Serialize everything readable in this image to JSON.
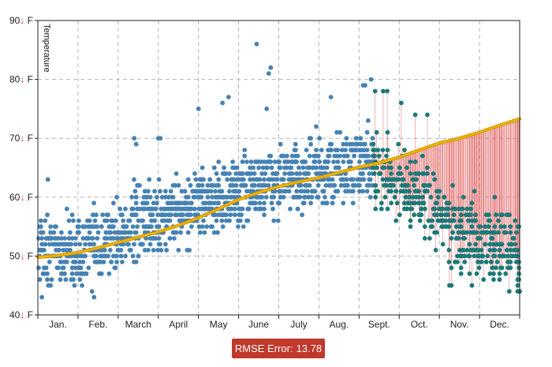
{
  "chart_data": {
    "type": "scatter",
    "ylabel": "Temperature",
    "ylim": [
      40,
      90
    ],
    "y_ticks": [
      {
        "num": "90",
        "arrow": "↓",
        "unit": "F",
        "value": 90
      },
      {
        "num": "80",
        "arrow": "↓",
        "unit": "F",
        "value": 80
      },
      {
        "num": "70",
        "arrow": "↓",
        "unit": "F",
        "value": 70
      },
      {
        "num": "60",
        "arrow": "↓",
        "unit": "F",
        "value": 60
      },
      {
        "num": "50",
        "arrow": "↓",
        "unit": "F",
        "value": 50
      },
      {
        "num": "40",
        "arrow": "↓",
        "unit": "F",
        "value": 40
      }
    ],
    "x_ticks": [
      "Jan.",
      "Feb.",
      "March",
      "April",
      "May",
      "June",
      "July",
      "Aug.",
      "Sept.",
      "Oct.",
      "Nov.",
      "Dec."
    ],
    "xlim": [
      0,
      12
    ],
    "grid": true,
    "split_x": 8.35,
    "colors": {
      "observed": "#4682b4",
      "predicted": "#1a7a78",
      "model_line": "#e6b800",
      "residual": "#e05a5a",
      "grid": "#b5b5b5"
    },
    "model_curve": [
      {
        "x": 0.0,
        "y": 49.8
      },
      {
        "x": 0.5,
        "y": 50.1
      },
      {
        "x": 1.0,
        "y": 50.6
      },
      {
        "x": 1.5,
        "y": 51.4
      },
      {
        "x": 2.0,
        "y": 52.3
      },
      {
        "x": 2.5,
        "y": 53.2
      },
      {
        "x": 3.0,
        "y": 54.1
      },
      {
        "x": 3.5,
        "y": 55.2
      },
      {
        "x": 4.0,
        "y": 56.5
      },
      {
        "x": 4.5,
        "y": 58.0
      },
      {
        "x": 5.0,
        "y": 59.6
      },
      {
        "x": 5.5,
        "y": 60.8
      },
      {
        "x": 6.0,
        "y": 61.8
      },
      {
        "x": 6.5,
        "y": 62.6
      },
      {
        "x": 7.0,
        "y": 63.3
      },
      {
        "x": 7.5,
        "y": 64.2
      },
      {
        "x": 8.0,
        "y": 65.1
      },
      {
        "x": 8.5,
        "y": 65.8
      },
      {
        "x": 9.0,
        "y": 66.8
      },
      {
        "x": 9.5,
        "y": 68.0
      },
      {
        "x": 10.0,
        "y": 69.2
      },
      {
        "x": 10.5,
        "y": 70.0
      },
      {
        "x": 11.0,
        "y": 71.0
      },
      {
        "x": 11.5,
        "y": 72.2
      },
      {
        "x": 12.0,
        "y": 73.3
      }
    ],
    "observed_trend": [
      {
        "x": 0.0,
        "y": 51.5
      },
      {
        "x": 0.5,
        "y": 51.0
      },
      {
        "x": 1.0,
        "y": 50.8
      },
      {
        "x": 1.5,
        "y": 52.0
      },
      {
        "x": 2.0,
        "y": 53.5
      },
      {
        "x": 2.5,
        "y": 55.0
      },
      {
        "x": 3.0,
        "y": 56.5
      },
      {
        "x": 3.5,
        "y": 57.5
      },
      {
        "x": 4.0,
        "y": 58.8
      },
      {
        "x": 4.5,
        "y": 60.0
      },
      {
        "x": 5.0,
        "y": 61.2
      },
      {
        "x": 5.5,
        "y": 62.0
      },
      {
        "x": 6.0,
        "y": 62.8
      },
      {
        "x": 6.5,
        "y": 63.4
      },
      {
        "x": 7.0,
        "y": 64.0
      },
      {
        "x": 7.5,
        "y": 64.6
      },
      {
        "x": 8.0,
        "y": 65.0
      },
      {
        "x": 8.35,
        "y": 65.2
      }
    ],
    "observed_spread": 3.6,
    "predicted_trend": [
      {
        "x": 8.35,
        "y": 65.0
      },
      {
        "x": 8.75,
        "y": 64.0
      },
      {
        "x": 9.0,
        "y": 62.5
      },
      {
        "x": 9.5,
        "y": 60.0
      },
      {
        "x": 10.0,
        "y": 57.0
      },
      {
        "x": 10.5,
        "y": 54.0
      },
      {
        "x": 11.0,
        "y": 52.5
      },
      {
        "x": 11.5,
        "y": 51.5
      },
      {
        "x": 12.0,
        "y": 51.0
      }
    ],
    "predicted_spread": 4.0,
    "observed_outliers": [
      {
        "x": 5.45,
        "y": 86
      },
      {
        "x": 5.8,
        "y": 82
      },
      {
        "x": 5.75,
        "y": 81
      },
      {
        "x": 4.75,
        "y": 77
      },
      {
        "x": 4.6,
        "y": 76
      },
      {
        "x": 4.0,
        "y": 75
      },
      {
        "x": 5.7,
        "y": 75
      },
      {
        "x": 7.3,
        "y": 77
      },
      {
        "x": 8.3,
        "y": 80
      },
      {
        "x": 8.1,
        "y": 79
      },
      {
        "x": 8.15,
        "y": 79
      },
      {
        "x": 0.1,
        "y": 43
      },
      {
        "x": 0.25,
        "y": 63
      },
      {
        "x": 1.4,
        "y": 43
      },
      {
        "x": 1.35,
        "y": 44
      },
      {
        "x": 2.4,
        "y": 70
      },
      {
        "x": 2.45,
        "y": 69
      },
      {
        "x": 3.0,
        "y": 70
      },
      {
        "x": 3.05,
        "y": 70
      },
      {
        "x": 0.05,
        "y": 46
      }
    ],
    "predicted_outliers": [
      {
        "x": 8.6,
        "y": 78
      },
      {
        "x": 8.7,
        "y": 78
      },
      {
        "x": 9.05,
        "y": 76
      },
      {
        "x": 9.4,
        "y": 74
      },
      {
        "x": 9.7,
        "y": 74
      },
      {
        "x": 10.25,
        "y": 45
      },
      {
        "x": 10.3,
        "y": 45
      },
      {
        "x": 11.1,
        "y": 46
      },
      {
        "x": 11.35,
        "y": 46
      },
      {
        "x": 11.95,
        "y": 44
      },
      {
        "x": 12.0,
        "y": 44
      },
      {
        "x": 8.4,
        "y": 78
      }
    ]
  },
  "rmse": {
    "label": "RMSE Error:",
    "value": "13.78"
  }
}
